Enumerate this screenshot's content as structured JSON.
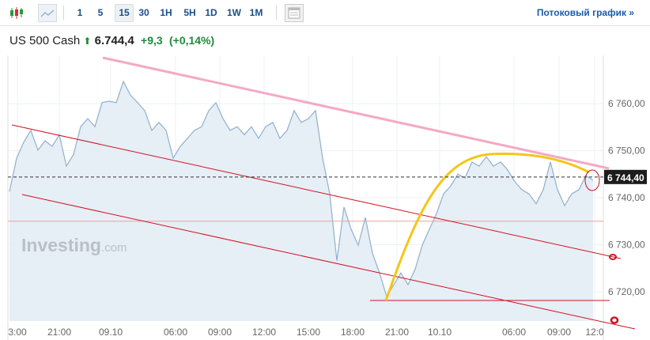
{
  "toolbar": {
    "chart_types": [
      {
        "icon": "candlestick-icon"
      },
      {
        "icon": "area-chart-icon"
      }
    ],
    "intervals": [
      "1",
      "5",
      "15",
      "30",
      "1H",
      "5H",
      "1D",
      "1W",
      "1M"
    ],
    "active_interval": "15",
    "layout_icon": "layout-icon",
    "streaming_label": "Потоковый график »"
  },
  "header": {
    "instrument": "US 500 Cash",
    "arrow": "up-arrow-icon",
    "price": "6.744,4",
    "change": "+9,3",
    "change_pct": "(+0,14%)",
    "up_color": "#1f8a3a"
  },
  "watermark": "Investing.com",
  "chart_data": {
    "type": "area",
    "ylim": [
      6712,
      6773
    ],
    "y_ticks": [
      "6 760,00",
      "6 750,00",
      "6 740,00",
      "6 730,00",
      "6 720,00"
    ],
    "y_tick_values": [
      6760,
      6750,
      6740,
      6730,
      6720
    ],
    "x_ticks": [
      "3:00",
      "21:00",
      "09.10",
      "06:00",
      "09:00",
      "12:00",
      "15:00",
      "18:00",
      "21:00",
      "10.10",
      "06:00",
      "09:00",
      "12:0"
    ],
    "last_value_label": "6 744,40",
    "last_value": 6744.4,
    "grid": true,
    "line_color": "#8fb0cc",
    "fill_color": "#e3ecf5",
    "values": [
      6741.3,
      6748.4,
      6751.8,
      6754.3,
      6750.1,
      6752.1,
      6750.9,
      6753.4,
      6746.7,
      6749.2,
      6755.1,
      6756.8,
      6755.1,
      6760.2,
      6760.5,
      6760.2,
      6764.7,
      6761.8,
      6760.2,
      6758.5,
      6754.3,
      6756.0,
      6754.3,
      6748.4,
      6750.9,
      6752.6,
      6754.3,
      6755.1,
      6758.5,
      6760.2,
      6756.8,
      6754.3,
      6755.1,
      6753.4,
      6755.1,
      6752.6,
      6755.1,
      6756.0,
      6752.6,
      6754.3,
      6758.5,
      6756.0,
      6756.8,
      6758.5,
      6748.4,
      6740.8,
      6726.6,
      6738.0,
      6733.3,
      6729.9,
      6735.8,
      6728.2,
      6724.0,
      6719.0,
      6721.5,
      6724.0,
      6721.5,
      6724.8,
      6729.9,
      6733.3,
      6736.6,
      6740.8,
      6742.5,
      6745.0,
      6744.2,
      6747.6,
      6746.7,
      6748.7,
      6746.7,
      6747.6,
      6745.9,
      6743.4,
      6741.7,
      6740.8,
      6738.7,
      6741.7,
      6747.6,
      6741.7,
      6738.3,
      6740.8,
      6741.7,
      6744.7,
      6743.7
    ],
    "annotations": {
      "upper_trendline_color": "#f4a9c4",
      "channel_color": "#d0101e",
      "curve_color": "#f5c518",
      "level_color": "#f0a0a0"
    }
  }
}
